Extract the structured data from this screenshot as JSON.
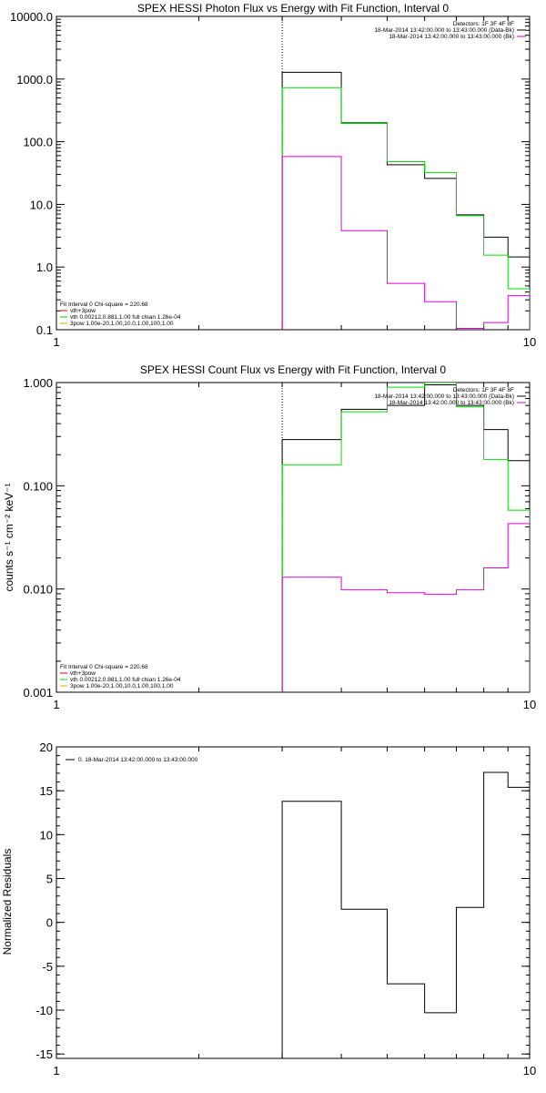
{
  "chart_data": [
    {
      "type": "line",
      "title": "SPEX HESSI Photon Flux vs Energy with Fit Function, Interval 0",
      "xscale": "log",
      "yscale": "log",
      "xlim": [
        1,
        10
      ],
      "ylim": [
        0.1,
        10000
      ],
      "xticks": [
        {
          "v": 1,
          "label": "1"
        },
        {
          "v": 10,
          "label": "10"
        }
      ],
      "yticks": [
        {
          "v": 0.1,
          "label": "0.1"
        },
        {
          "v": 1,
          "label": "1.0"
        },
        {
          "v": 10,
          "label": "10.0"
        },
        {
          "v": 100,
          "label": "100.0"
        },
        {
          "v": 1000,
          "label": "1000.0"
        },
        {
          "v": 10000,
          "label": "10000.0"
        }
      ],
      "vline_x": 3,
      "edges": [
        3,
        4,
        5,
        6,
        7,
        8,
        9,
        10
      ],
      "series": [
        {
          "color": "#000000",
          "values": [
            1280,
            200,
            43,
            26,
            6.8,
            3.0,
            1.45
          ]
        },
        {
          "color": "#00dd00",
          "values": [
            730,
            195,
            48,
            32,
            6.6,
            1.55,
            0.45
          ]
        },
        {
          "color": "#dd00dd",
          "values": [
            58,
            3.8,
            0.55,
            0.28,
            0.105,
            0.13,
            0.35
          ]
        }
      ],
      "legend_top": {
        "lines": [
          {
            "text": "Detectors: 1F 3F 4F 8F",
            "color": null
          },
          {
            "text": "18-Mar-2014 13:42:00.000 to 13:43:00.000 (Data-Bk)",
            "color": "#000000"
          },
          {
            "text": "18-Mar-2014 13:42:00.000 to 13:43:00.000 (Bk)",
            "color": "#dd00dd"
          }
        ]
      },
      "legend_bottom": {
        "lines": [
          {
            "text": "Fit Interval 0   Chi-square = 220.68",
            "color": null
          },
          {
            "text": "vth+3pow",
            "color": "#dd0000"
          },
          {
            "text": "vth 0.00212,0.881,1.00   full chian 1.26e-04",
            "color": "#00dd00"
          },
          {
            "text": "3pow 1.00e-20,1.00,10.0,1.00,100,1.00",
            "color": "#ddaa00"
          }
        ]
      }
    },
    {
      "type": "line",
      "title": "SPEX HESSI Count Flux vs Energy with Fit Function, Interval 0",
      "ylabel": "counts s⁻¹ cm⁻² keV⁻¹",
      "xscale": "log",
      "yscale": "log",
      "xlim": [
        1,
        10
      ],
      "ylim": [
        0.001,
        1
      ],
      "xticks": [
        {
          "v": 1,
          "label": "1"
        },
        {
          "v": 10,
          "label": "10"
        }
      ],
      "yticks": [
        {
          "v": 0.001,
          "label": "0.001"
        },
        {
          "v": 0.01,
          "label": "0.010"
        },
        {
          "v": 0.1,
          "label": "0.100"
        },
        {
          "v": 1,
          "label": "1.000"
        }
      ],
      "vline_x": 3,
      "edges": [
        3,
        4,
        5,
        6,
        7,
        8,
        9,
        10
      ],
      "series": [
        {
          "color": "#000000",
          "values": [
            0.28,
            0.55,
            0.6,
            0.95,
            0.6,
            0.35,
            0.175
          ]
        },
        {
          "color": "#00dd00",
          "values": [
            0.16,
            0.52,
            0.9,
            1.0,
            0.58,
            0.18,
            0.058
          ]
        },
        {
          "color": "#dd00dd",
          "values": [
            0.013,
            0.0098,
            0.0092,
            0.0089,
            0.0098,
            0.016,
            0.043
          ]
        }
      ],
      "legend_top": {
        "lines": [
          {
            "text": "Detectors: 1F 3F 4F 8F",
            "color": null
          },
          {
            "text": "18-Mar-2014 13:42:00.000 to 13:43:00.000 (Data-Bk)",
            "color": "#000000"
          },
          {
            "text": "18-Mar-2014 13:42:00.000 to 13:43:00.000 (Bk)",
            "color": "#dd00dd"
          }
        ]
      },
      "legend_bottom": {
        "lines": [
          {
            "text": "Fit Interval 0   Chi-square = 220.68",
            "color": null
          },
          {
            "text": "vth+3pow",
            "color": "#dd0000"
          },
          {
            "text": "vth 0.00212,0.881,1.00   full chian 1.26e-04",
            "color": "#00dd00"
          },
          {
            "text": "3pow 1.00e-20,1.00,10.0,1.00,100,1.00",
            "color": "#ddaa00"
          }
        ]
      }
    },
    {
      "type": "line",
      "ylabel": "Normalized Residuals",
      "xscale": "log",
      "yscale": "linear",
      "xlim": [
        1,
        10
      ],
      "ylim": [
        -15.5,
        20
      ],
      "xticks": [
        {
          "v": 1,
          "label": "1"
        },
        {
          "v": 10,
          "label": "10"
        }
      ],
      "yticks": [
        {
          "v": -15,
          "label": "-15"
        },
        {
          "v": -10,
          "label": "-10"
        },
        {
          "v": -5,
          "label": "-5"
        },
        {
          "v": 0,
          "label": "0"
        },
        {
          "v": 5,
          "label": "5"
        },
        {
          "v": 10,
          "label": "10"
        },
        {
          "v": 15,
          "label": "15"
        },
        {
          "v": 20,
          "label": "20"
        }
      ],
      "edges": [
        3,
        4,
        5,
        6,
        7,
        8,
        9,
        10
      ],
      "series": [
        {
          "color": "#000000",
          "values": [
            13.8,
            1.5,
            -7.0,
            -10.3,
            1.7,
            17.1,
            15.4
          ]
        }
      ],
      "legend_top": {
        "lines": [
          {
            "text": "0. 18-Mar-2014 13:42:00.000 to 13:43:00.000",
            "color": "#000000"
          }
        ]
      }
    }
  ]
}
